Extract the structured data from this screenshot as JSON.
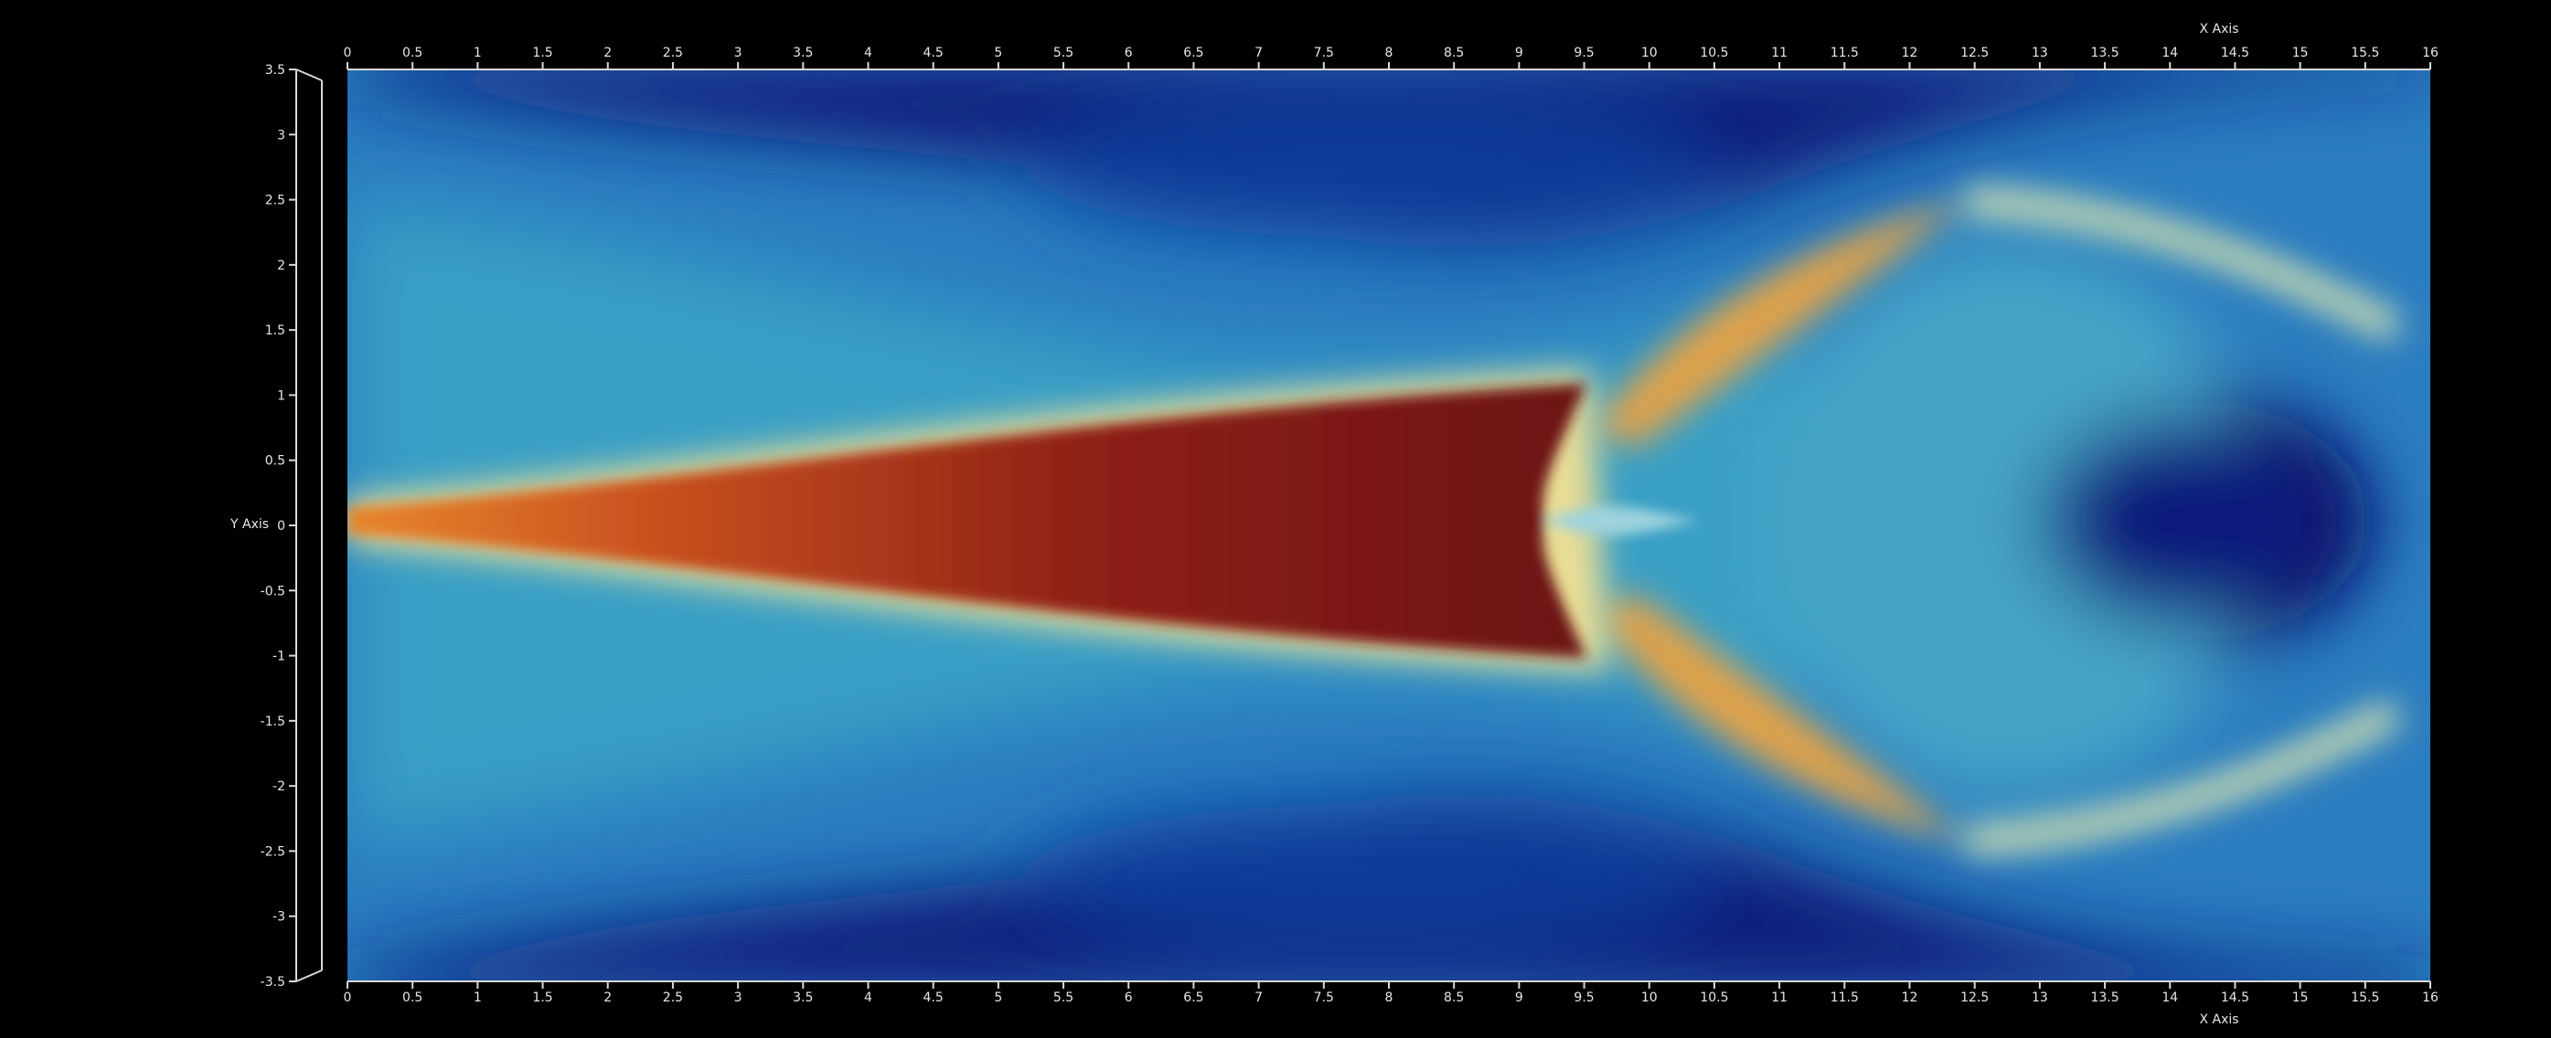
{
  "visualization": {
    "type": "jet plume contour",
    "colormap": {
      "low": "#0a0a5a",
      "mid_low": "#1a6bb8",
      "mid": "#3fa6c4",
      "mid_high": "#e9dd95",
      "high": "#d87020",
      "max": "#6e1212"
    },
    "background": "#000000"
  },
  "axes": {
    "x_title_top": "X Axis",
    "x_title_bottom": "X Axis",
    "y_title": "Y Axis",
    "x_range": [
      0,
      16
    ],
    "y_range": [
      -3.5,
      3.5
    ],
    "x_ticks": [
      "0",
      "0.5",
      "1",
      "1.5",
      "2",
      "2.5",
      "3",
      "3.5",
      "4",
      "4.5",
      "5",
      "5.5",
      "6",
      "6.5",
      "7",
      "7.5",
      "8",
      "8.5",
      "9",
      "9.5",
      "10",
      "10.5",
      "11",
      "11.5",
      "12",
      "12.5",
      "13",
      "13.5",
      "14",
      "14.5",
      "15",
      "15.5",
      "16"
    ],
    "y_ticks": [
      "3.5",
      "3",
      "2.5",
      "2",
      "1.5",
      "1",
      "0.5",
      "0",
      "-0.5",
      "-1",
      "-1.5",
      "-2",
      "-2.5",
      "-3",
      "-3.5"
    ]
  }
}
